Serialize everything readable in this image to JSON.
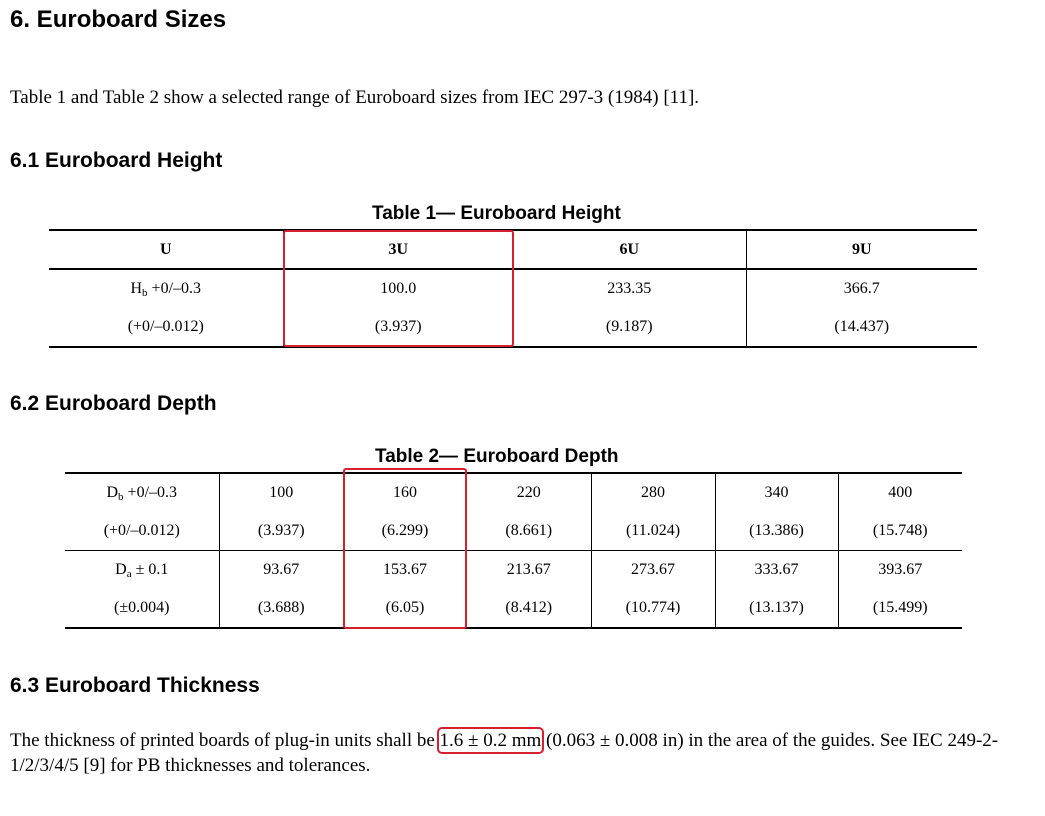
{
  "heading": "6. Euroboard Sizes",
  "intro": "Table 1 and Table 2 show a selected range of Euroboard sizes from IEC 297-3 (1984) [11].",
  "sec61": "6.1 Euroboard Height",
  "sec62": "6.2 Euroboard Depth",
  "sec63": "6.3 Euroboard Thickness",
  "table1": {
    "caption": "Table 1— Euroboard Height",
    "header": [
      "U",
      "3U",
      "6U",
      "9U"
    ],
    "row1": {
      "base": "H",
      "sub": "b",
      "rest": " +0/–0.3",
      "values": [
        "100.0",
        "233.35",
        "366.7"
      ]
    },
    "row2": {
      "label": "(+0/–0.012)",
      "values": [
        "(3.937)",
        "(9.187)",
        "(14.437)"
      ]
    }
  },
  "table2": {
    "caption": "Table 2— Euroboard Depth",
    "row1": {
      "base": "D",
      "sub": "b",
      "rest": " +0/–0.3",
      "values": [
        "100",
        "160",
        "220",
        "280",
        "340",
        "400"
      ]
    },
    "row2": {
      "label": "(+0/–0.012)",
      "values": [
        "(3.937)",
        "(6.299)",
        "(8.661)",
        "(11.024)",
        "(13.386)",
        "(15.748)"
      ]
    },
    "row3": {
      "base": "D",
      "sub": "a",
      "rest": " ± 0.1",
      "values": [
        "93.67",
        "153.67",
        "213.67",
        "273.67",
        "333.67",
        "393.67"
      ]
    },
    "row4": {
      "label": "(±0.004)",
      "values": [
        "(3.688)",
        "(6.05)",
        "(8.412)",
        "(10.774)",
        "(13.137)",
        "(15.499)"
      ]
    }
  },
  "thickness": {
    "pre": "The thickness of printed boards of plug-in units shall be ",
    "highlight": "1.6 ± 0.2 mm",
    "post": " (0.063 ± 0.008 in) in the area of the guides. See IEC 249-2-1/2/3/4/5 [9] for PB thicknesses and tolerances."
  },
  "highlight_color": "#d62030"
}
